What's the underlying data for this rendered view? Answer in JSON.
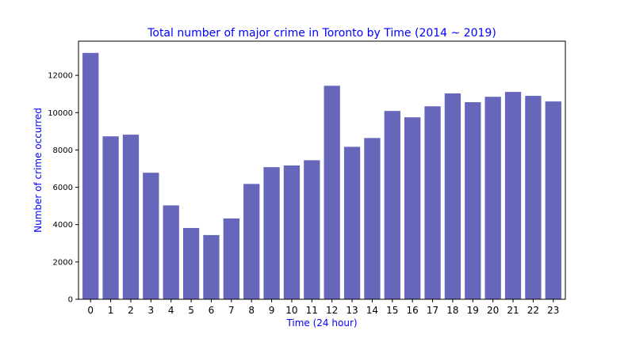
{
  "chart_data": {
    "type": "bar",
    "title": "Total number of major crime in Toronto by Time (2014 ~ 2019)",
    "xlabel": "Time (24 hour)",
    "ylabel": "Number of crime occurred",
    "categories": [
      "0",
      "1",
      "2",
      "3",
      "4",
      "5",
      "6",
      "7",
      "8",
      "9",
      "10",
      "11",
      "12",
      "13",
      "14",
      "15",
      "16",
      "17",
      "18",
      "19",
      "20",
      "21",
      "22",
      "23"
    ],
    "values": [
      13200,
      8730,
      8820,
      6780,
      5030,
      3820,
      3440,
      4330,
      6180,
      7080,
      7170,
      7450,
      11440,
      8170,
      8640,
      10090,
      9750,
      10340,
      11030,
      10560,
      10850,
      11110,
      10900,
      10600
    ],
    "ylim": [
      0,
      13830
    ],
    "yticks": [
      "0",
      "2000",
      "4000",
      "6000",
      "8000",
      "10000",
      "12000"
    ],
    "grid": false,
    "colors": {
      "bar": "#6666bb",
      "title": "#0000ff",
      "axis_label": "#0000ff",
      "axis": "#000000"
    }
  }
}
